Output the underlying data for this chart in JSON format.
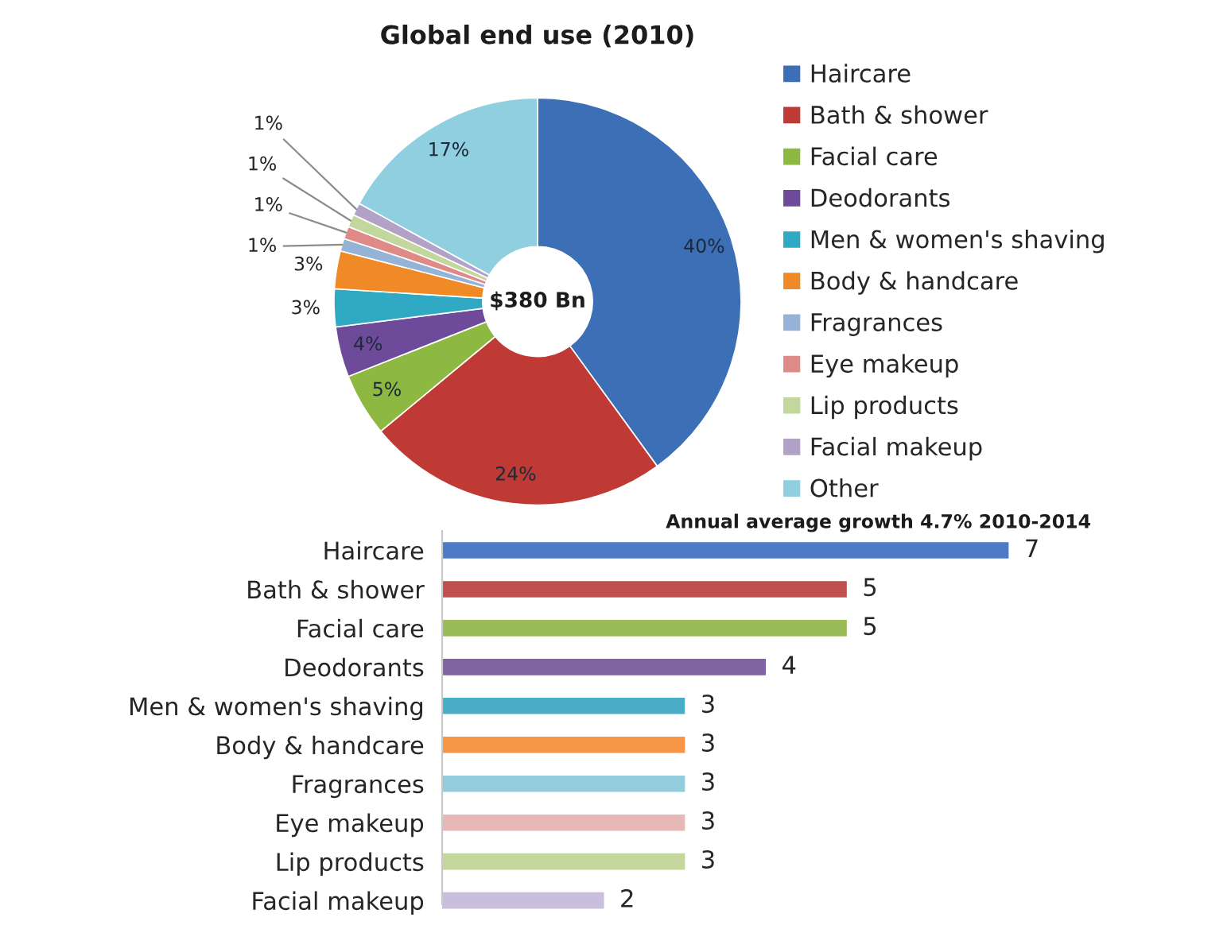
{
  "chart_data": [
    {
      "type": "donut",
      "title": "Global end use (2010)",
      "categories": [
        "Haircare",
        "Bath & shower",
        "Facial care",
        "Deodorants",
        "Men & women's shaving",
        "Body & handcare",
        "Fragrances",
        "Eye makeup",
        "Lip products",
        "Facial makeup",
        "Other"
      ],
      "values": [
        40,
        24,
        5,
        4,
        3,
        3,
        1,
        1,
        1,
        1,
        17
      ],
      "value_labels": [
        "40%",
        "24%",
        "5%",
        "4%",
        "3%",
        "3%",
        "1%",
        "1%",
        "1%",
        "1%",
        "17%"
      ],
      "colors": [
        "#3d6fb6",
        "#bf3a34",
        "#8db842",
        "#6d4a9a",
        "#2fa9c4",
        "#f08a26",
        "#95b3d7",
        "#e08a88",
        "#c3d69b",
        "#b3a2c7",
        "#8fcfe0"
      ],
      "annotations": [
        "$380 Bn"
      ],
      "legend": "right"
    },
    {
      "type": "bar",
      "orientation": "horizontal",
      "title": "Annual average growth 4.7% 2010-2014",
      "categories": [
        "Haircare",
        "Bath & shower",
        "Facial care",
        "Deodorants",
        "Men & women's shaving",
        "Body & handcare",
        "Fragrances",
        "Eye makeup",
        "Lip products",
        "Facial makeup"
      ],
      "values": [
        7,
        5,
        5,
        4,
        3,
        3,
        3,
        3,
        3,
        2
      ],
      "colors": [
        "#4f7ac7",
        "#c0504d",
        "#9bbb59",
        "#8064a2",
        "#4bacc6",
        "#f79646",
        "#93cddd",
        "#e6b9b8",
        "#c3d69b",
        "#c9bfdc"
      ],
      "data_labels": true,
      "tick_labels": "y"
    }
  ]
}
